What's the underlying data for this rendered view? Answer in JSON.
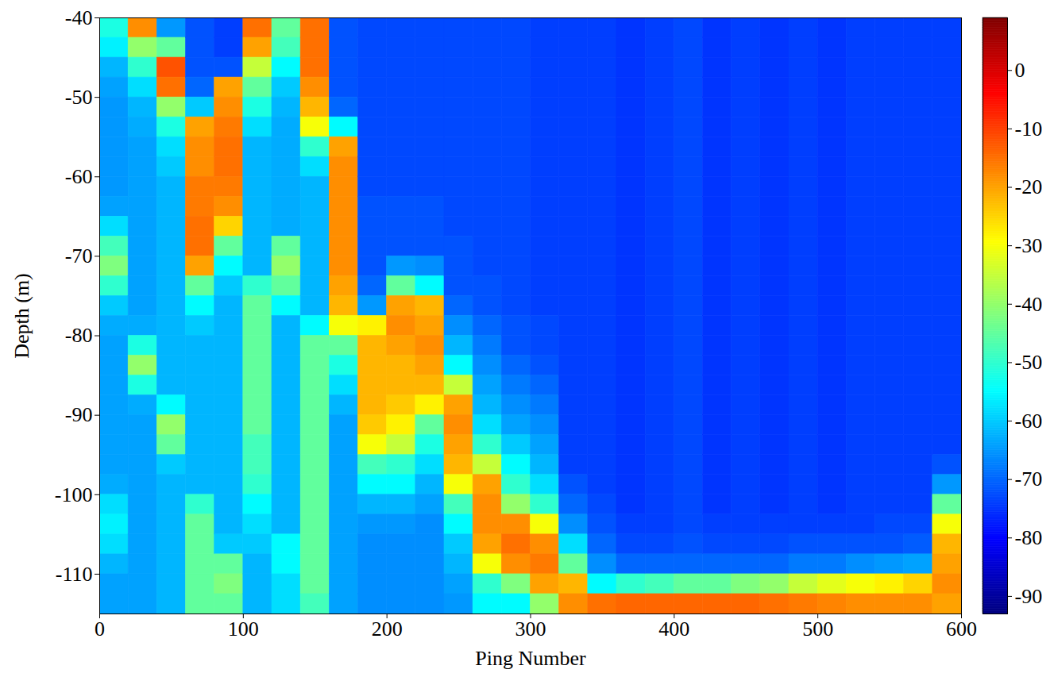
{
  "chart_data": {
    "type": "heatmap",
    "x_label": "Ping Number",
    "y_label": "Depth (m)",
    "xlim": [
      0,
      600
    ],
    "xticks": [
      0,
      100,
      200,
      300,
      400,
      500,
      600
    ],
    "ylim": [
      -115,
      -40
    ],
    "yticks": [
      -110,
      -100,
      -90,
      -80,
      -70,
      -60,
      -50,
      -40
    ],
    "cells": {
      "x_bins": [
        0,
        20,
        40,
        60,
        80,
        100,
        120,
        140,
        160,
        180,
        200,
        220,
        240,
        260,
        280,
        300,
        320,
        340,
        360,
        380,
        400,
        420,
        440,
        460,
        480,
        500,
        520,
        540,
        560,
        580,
        600
      ],
      "y_bins": [
        -40,
        -42.5,
        -45,
        -47.5,
        -50,
        -52.5,
        -55,
        -57.5,
        -60,
        -62.5,
        -65,
        -67.5,
        -70,
        -72.5,
        -75,
        -77.5,
        -80,
        -82.5,
        -85,
        -87.5,
        -90,
        -92.5,
        -95,
        -97.5,
        -100,
        -102.5,
        -105,
        -107.5,
        -110,
        -112.5,
        -115
      ],
      "values": [
        [
          -52,
          -56,
          -62,
          -64,
          -65,
          -65,
          -65,
          -65,
          -65,
          -64,
          -58,
          -48,
          -42,
          -50,
          -60,
          -63,
          -64,
          -64,
          -64,
          -64,
          -64,
          -64,
          -64,
          -63,
          -58,
          -56,
          -58,
          -62,
          -64,
          -64
        ],
        [
          -18,
          -40,
          -50,
          -58,
          -62,
          -63,
          -64,
          -64,
          -64,
          -64,
          -64,
          -64,
          -64,
          -64,
          -64,
          -63,
          -52,
          -40,
          -52,
          -63,
          -64,
          -64,
          -64,
          -64,
          -64,
          -64,
          -64,
          -64,
          -64,
          -64
        ],
        [
          -65,
          -45,
          -12,
          -15,
          -40,
          -52,
          -58,
          -60,
          -62,
          -62,
          -62,
          -62,
          -62,
          -62,
          -62,
          -62,
          -62,
          -62,
          -62,
          -55,
          -40,
          -45,
          -60,
          -62,
          -62,
          -62,
          -62,
          -62,
          -62,
          -62
        ],
        [
          -72,
          -72,
          -72,
          -70,
          -60,
          -20,
          -18,
          -18,
          -16,
          -16,
          -15,
          -15,
          -20,
          -45,
          -55,
          -60,
          -62,
          -62,
          -62,
          -62,
          -62,
          -62,
          -62,
          -62,
          -50,
          -45,
          -45,
          -45,
          -45,
          -45
        ],
        [
          -74,
          -74,
          -72,
          -20,
          -18,
          -16,
          -15,
          -15,
          -16,
          -18,
          -25,
          -45,
          -55,
          -60,
          -62,
          -62,
          -62,
          -62,
          -62,
          -62,
          -62,
          -62,
          -62,
          -62,
          -62,
          -62,
          -60,
          -45,
          -42,
          -45
        ],
        [
          -15,
          -20,
          -35,
          -45,
          -52,
          -58,
          -62,
          -62,
          -62,
          -62,
          -62,
          -62,
          -62,
          -50,
          -45,
          -45,
          -45,
          -45,
          -45,
          -45,
          -45,
          -48,
          -48,
          -50,
          -55,
          -58,
          -60,
          -62,
          -62,
          -62
        ],
        [
          -45,
          -48,
          -55,
          -60,
          -62,
          -63,
          -63,
          -63,
          -63,
          -63,
          -63,
          -45,
          -40,
          -45,
          -55,
          -62,
          -62,
          -62,
          -62,
          -62,
          -62,
          -62,
          -62,
          -62,
          -62,
          -62,
          -55,
          -55,
          -58,
          -58
        ],
        [
          -15,
          -15,
          -15,
          -18,
          -22,
          -30,
          -50,
          -58,
          -62,
          -62,
          -62,
          -62,
          -62,
          -62,
          -62,
          -55,
          -45,
          -45,
          -45,
          -45,
          -45,
          -45,
          -45,
          -45,
          -45,
          -45,
          -45,
          -45,
          -45,
          -48
        ],
        [
          -72,
          -72,
          -72,
          -72,
          -70,
          -55,
          -20,
          -18,
          -18,
          -18,
          -18,
          -18,
          -18,
          -20,
          -22,
          -30,
          -45,
          -52,
          -58,
          -62,
          -64,
          -64,
          -64,
          -64,
          -64,
          -64,
          -64,
          -64,
          -64,
          -64
        ],
        [
          -73,
          -73,
          -73,
          -73,
          -73,
          -73,
          -73,
          -73,
          -73,
          -72,
          -72,
          -72,
          -72,
          -70,
          -65,
          -28,
          -22,
          -22,
          -22,
          -22,
          -24,
          -30,
          -48,
          -55,
          -62,
          -65,
          -66,
          -66,
          -66,
          -66
        ],
        [
          -73,
          -73,
          -73,
          -73,
          -73,
          -73,
          -73,
          -73,
          -73,
          -72,
          -72,
          -72,
          -65,
          -45,
          -20,
          -18,
          -20,
          -22,
          -22,
          -24,
          -28,
          -35,
          -50,
          -55,
          -62,
          -65,
          -66,
          -66,
          -66,
          -66
        ],
        [
          -73,
          -73,
          -73,
          -73,
          -73,
          -73,
          -73,
          -73,
          -73,
          -72,
          -72,
          -72,
          -66,
          -55,
          -22,
          -20,
          -18,
          -20,
          -22,
          -28,
          -45,
          -52,
          -58,
          -62,
          -64,
          -66,
          -66,
          -66,
          -66,
          -66
        ],
        [
          -73,
          -73,
          -73,
          -73,
          -73,
          -73,
          -73,
          -73,
          -73,
          -73,
          -73,
          -72,
          -72,
          -72,
          -70,
          -66,
          -62,
          -55,
          -35,
          -20,
          -18,
          -20,
          -22,
          -30,
          -48,
          -55,
          -60,
          -62,
          -64,
          -65
        ],
        [
          -73,
          -73,
          -73,
          -73,
          -73,
          -73,
          -73,
          -73,
          -73,
          -73,
          -73,
          -73,
          -73,
          -72,
          -72,
          -70,
          -68,
          -66,
          -64,
          -62,
          -58,
          -50,
          -35,
          -20,
          -18,
          -18,
          -20,
          -30,
          -50,
          -55
        ],
        [
          -73,
          -73,
          -73,
          -73,
          -73,
          -73,
          -73,
          -73,
          -73,
          -73,
          -73,
          -73,
          -73,
          -73,
          -73,
          -72,
          -72,
          -70,
          -68,
          -66,
          -64,
          -60,
          -55,
          -50,
          -40,
          -18,
          -15,
          -18,
          -42,
          -55
        ],
        [
          -74,
          -74,
          -74,
          -74,
          -74,
          -74,
          -74,
          -74,
          -74,
          -74,
          -74,
          -74,
          -74,
          -74,
          -74,
          -73,
          -73,
          -72,
          -70,
          -68,
          -66,
          -64,
          -62,
          -58,
          -50,
          -30,
          -18,
          -16,
          -20,
          -40
        ],
        [
          -74,
          -74,
          -74,
          -74,
          -74,
          -74,
          -74,
          -74,
          -74,
          -74,
          -74,
          -74,
          -74,
          -74,
          -74,
          -74,
          -74,
          -74,
          -74,
          -74,
          -74,
          -74,
          -74,
          -72,
          -70,
          -66,
          -58,
          -45,
          -22,
          -18
        ],
        [
          -74,
          -74,
          -74,
          -74,
          -74,
          -74,
          -74,
          -74,
          -74,
          -74,
          -74,
          -74,
          -74,
          -74,
          -74,
          -74,
          -74,
          -74,
          -74,
          -74,
          -74,
          -74,
          -74,
          -74,
          -73,
          -72,
          -70,
          -66,
          -55,
          -15
        ],
        [
          -75,
          -75,
          -75,
          -75,
          -75,
          -75,
          -75,
          -75,
          -75,
          -75,
          -75,
          -75,
          -75,
          -75,
          -75,
          -75,
          -75,
          -75,
          -75,
          -75,
          -75,
          -75,
          -75,
          -75,
          -75,
          -74,
          -73,
          -70,
          -50,
          -14
        ],
        [
          -74,
          -74,
          -74,
          -74,
          -74,
          -74,
          -74,
          -74,
          -74,
          -74,
          -74,
          -74,
          -74,
          -74,
          -74,
          -74,
          -74,
          -74,
          -74,
          -74,
          -74,
          -74,
          -74,
          -74,
          -74,
          -74,
          -73,
          -70,
          -48,
          -14
        ],
        [
          -73,
          -73,
          -73,
          -73,
          -73,
          -73,
          -73,
          -73,
          -73,
          -73,
          -73,
          -73,
          -73,
          -73,
          -73,
          -73,
          -73,
          -73,
          -73,
          -73,
          -73,
          -73,
          -73,
          -73,
          -73,
          -73,
          -72,
          -70,
          -45,
          -14
        ],
        [
          -75,
          -75,
          -75,
          -75,
          -75,
          -75,
          -75,
          -75,
          -75,
          -75,
          -75,
          -75,
          -75,
          -75,
          -75,
          -75,
          -75,
          -75,
          -75,
          -75,
          -75,
          -75,
          -75,
          -75,
          -75,
          -74,
          -73,
          -70,
          -45,
          -14
        ],
        [
          -74,
          -74,
          -74,
          -74,
          -74,
          -74,
          -74,
          -74,
          -74,
          -74,
          -74,
          -74,
          -74,
          -74,
          -74,
          -74,
          -74,
          -74,
          -74,
          -74,
          -74,
          -74,
          -74,
          -74,
          -74,
          -74,
          -73,
          -70,
          -42,
          -14
        ],
        [
          -75,
          -75,
          -75,
          -75,
          -75,
          -75,
          -75,
          -75,
          -75,
          -75,
          -75,
          -75,
          -75,
          -75,
          -75,
          -75,
          -75,
          -75,
          -75,
          -75,
          -75,
          -75,
          -75,
          -75,
          -75,
          -74,
          -73,
          -70,
          -40,
          -15
        ],
        [
          -74,
          -74,
          -74,
          -74,
          -74,
          -74,
          -74,
          -74,
          -74,
          -74,
          -74,
          -74,
          -74,
          -74,
          -74,
          -74,
          -74,
          -74,
          -74,
          -74,
          -74,
          -74,
          -74,
          -74,
          -74,
          -74,
          -72,
          -68,
          -35,
          -16
        ],
        [
          -75,
          -75,
          -75,
          -75,
          -75,
          -75,
          -75,
          -75,
          -75,
          -75,
          -75,
          -75,
          -75,
          -75,
          -75,
          -75,
          -75,
          -75,
          -75,
          -75,
          -75,
          -75,
          -75,
          -75,
          -75,
          -74,
          -72,
          -68,
          -32,
          -17
        ],
        [
          -74,
          -74,
          -74,
          -74,
          -74,
          -74,
          -74,
          -74,
          -74,
          -74,
          -74,
          -74,
          -74,
          -74,
          -74,
          -74,
          -74,
          -74,
          -74,
          -74,
          -74,
          -74,
          -74,
          -74,
          -74,
          -74,
          -72,
          -66,
          -30,
          -18
        ],
        [
          -74,
          -74,
          -74,
          -74,
          -74,
          -74,
          -74,
          -74,
          -74,
          -74,
          -74,
          -74,
          -74,
          -74,
          -74,
          -74,
          -74,
          -74,
          -74,
          -74,
          -74,
          -74,
          -74,
          -74,
          -74,
          -73,
          -72,
          -65,
          -28,
          -18
        ],
        [
          -74,
          -74,
          -74,
          -74,
          -74,
          -74,
          -74,
          -74,
          -74,
          -74,
          -74,
          -74,
          -74,
          -74,
          -74,
          -74,
          -74,
          -74,
          -74,
          -74,
          -74,
          -74,
          -74,
          -74,
          -74,
          -73,
          -71,
          -64,
          -25,
          -18
        ],
        [
          -74,
          -74,
          -74,
          -74,
          -74,
          -74,
          -74,
          -74,
          -74,
          -74,
          -74,
          -74,
          -74,
          -74,
          -74,
          -74,
          -74,
          -74,
          -74,
          -74,
          -74,
          -74,
          -72,
          -65,
          -45,
          -30,
          -22,
          -20,
          -18,
          -20
        ]
      ]
    },
    "colorbar": {
      "lim": [
        -93,
        9
      ],
      "ticks": [
        0,
        -10,
        -20,
        -30,
        -40,
        -50,
        -60,
        -70,
        -80,
        -90
      ]
    }
  }
}
